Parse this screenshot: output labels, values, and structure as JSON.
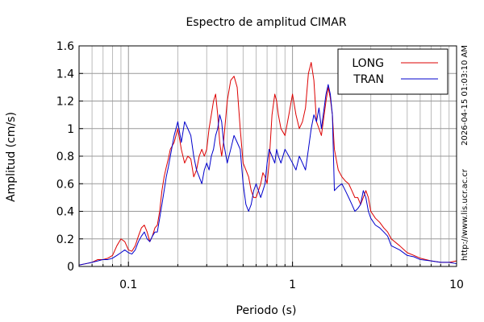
{
  "chart_data": {
    "type": "line",
    "title": "Espectro de amplitud CIMAR",
    "xlabel": "Periodo (s)",
    "ylabel": "Amplitud (cm/s)",
    "xscale": "log",
    "xlim": [
      0.05,
      10
    ],
    "ylim": [
      0,
      1.6
    ],
    "x_tick_labels": [
      "0.1",
      "1",
      "10"
    ],
    "y_tick_labels": [
      "0",
      "0.2",
      "0.4",
      "0.6",
      "0.8",
      "1",
      "1.2",
      "1.4",
      "1.6"
    ],
    "grid": true,
    "legend_position": "top-right",
    "side_text_timestamp": "2026-04-15 01:03:10 AM",
    "side_text_url": "http://www.lis.ucr.ac.cr",
    "series": [
      {
        "name": "LONG",
        "color": "#dd0000",
        "points": [
          [
            0.05,
            0.01
          ],
          [
            0.055,
            0.02
          ],
          [
            0.06,
            0.03
          ],
          [
            0.065,
            0.05
          ],
          [
            0.07,
            0.05
          ],
          [
            0.075,
            0.06
          ],
          [
            0.08,
            0.08
          ],
          [
            0.085,
            0.15
          ],
          [
            0.09,
            0.2
          ],
          [
            0.095,
            0.18
          ],
          [
            0.1,
            0.12
          ],
          [
            0.105,
            0.11
          ],
          [
            0.11,
            0.15
          ],
          [
            0.115,
            0.22
          ],
          [
            0.12,
            0.28
          ],
          [
            0.125,
            0.3
          ],
          [
            0.13,
            0.25
          ],
          [
            0.135,
            0.18
          ],
          [
            0.14,
            0.22
          ],
          [
            0.145,
            0.28
          ],
          [
            0.15,
            0.3
          ],
          [
            0.155,
            0.4
          ],
          [
            0.16,
            0.55
          ],
          [
            0.165,
            0.65
          ],
          [
            0.17,
            0.72
          ],
          [
            0.175,
            0.78
          ],
          [
            0.18,
            0.85
          ],
          [
            0.19,
            0.9
          ],
          [
            0.2,
            1.0
          ],
          [
            0.21,
            0.85
          ],
          [
            0.22,
            0.75
          ],
          [
            0.23,
            0.8
          ],
          [
            0.24,
            0.78
          ],
          [
            0.25,
            0.65
          ],
          [
            0.26,
            0.7
          ],
          [
            0.27,
            0.8
          ],
          [
            0.28,
            0.85
          ],
          [
            0.29,
            0.8
          ],
          [
            0.3,
            0.85
          ],
          [
            0.31,
            1.0
          ],
          [
            0.32,
            1.1
          ],
          [
            0.33,
            1.2
          ],
          [
            0.34,
            1.25
          ],
          [
            0.35,
            1.1
          ],
          [
            0.36,
            0.9
          ],
          [
            0.37,
            0.8
          ],
          [
            0.38,
            0.9
          ],
          [
            0.4,
            1.2
          ],
          [
            0.42,
            1.35
          ],
          [
            0.44,
            1.38
          ],
          [
            0.46,
            1.3
          ],
          [
            0.48,
            1.0
          ],
          [
            0.5,
            0.75
          ],
          [
            0.52,
            0.7
          ],
          [
            0.54,
            0.65
          ],
          [
            0.56,
            0.55
          ],
          [
            0.58,
            0.5
          ],
          [
            0.6,
            0.5
          ],
          [
            0.62,
            0.55
          ],
          [
            0.64,
            0.6
          ],
          [
            0.66,
            0.68
          ],
          [
            0.68,
            0.65
          ],
          [
            0.7,
            0.6
          ],
          [
            0.72,
            0.75
          ],
          [
            0.75,
            1.1
          ],
          [
            0.78,
            1.25
          ],
          [
            0.8,
            1.2
          ],
          [
            0.82,
            1.1
          ],
          [
            0.85,
            1.0
          ],
          [
            0.9,
            0.95
          ],
          [
            0.95,
            1.1
          ],
          [
            1.0,
            1.25
          ],
          [
            1.05,
            1.1
          ],
          [
            1.1,
            1.0
          ],
          [
            1.15,
            1.05
          ],
          [
            1.2,
            1.15
          ],
          [
            1.25,
            1.4
          ],
          [
            1.3,
            1.48
          ],
          [
            1.35,
            1.35
          ],
          [
            1.4,
            1.05
          ],
          [
            1.45,
            1.0
          ],
          [
            1.5,
            0.95
          ],
          [
            1.6,
            1.2
          ],
          [
            1.65,
            1.3
          ],
          [
            1.7,
            1.22
          ],
          [
            1.75,
            1.1
          ],
          [
            1.8,
            0.85
          ],
          [
            1.9,
            0.7
          ],
          [
            2.0,
            0.65
          ],
          [
            2.1,
            0.62
          ],
          [
            2.2,
            0.6
          ],
          [
            2.3,
            0.55
          ],
          [
            2.4,
            0.5
          ],
          [
            2.5,
            0.5
          ],
          [
            2.6,
            0.45
          ],
          [
            2.7,
            0.5
          ],
          [
            2.8,
            0.55
          ],
          [
            2.9,
            0.5
          ],
          [
            3.0,
            0.4
          ],
          [
            3.2,
            0.35
          ],
          [
            3.4,
            0.32
          ],
          [
            3.6,
            0.28
          ],
          [
            3.8,
            0.25
          ],
          [
            4.0,
            0.2
          ],
          [
            4.5,
            0.15
          ],
          [
            5.0,
            0.1
          ],
          [
            5.5,
            0.08
          ],
          [
            6.0,
            0.06
          ],
          [
            7.0,
            0.04
          ],
          [
            8.0,
            0.03
          ],
          [
            9.0,
            0.03
          ],
          [
            10.0,
            0.04
          ]
        ]
      },
      {
        "name": "TRAN",
        "color": "#0000cc",
        "points": [
          [
            0.05,
            0.01
          ],
          [
            0.055,
            0.02
          ],
          [
            0.06,
            0.03
          ],
          [
            0.065,
            0.04
          ],
          [
            0.07,
            0.05
          ],
          [
            0.075,
            0.05
          ],
          [
            0.08,
            0.06
          ],
          [
            0.085,
            0.08
          ],
          [
            0.09,
            0.1
          ],
          [
            0.095,
            0.12
          ],
          [
            0.1,
            0.1
          ],
          [
            0.105,
            0.09
          ],
          [
            0.11,
            0.12
          ],
          [
            0.115,
            0.18
          ],
          [
            0.12,
            0.22
          ],
          [
            0.125,
            0.25
          ],
          [
            0.13,
            0.2
          ],
          [
            0.135,
            0.18
          ],
          [
            0.14,
            0.22
          ],
          [
            0.145,
            0.25
          ],
          [
            0.15,
            0.25
          ],
          [
            0.155,
            0.35
          ],
          [
            0.16,
            0.45
          ],
          [
            0.165,
            0.55
          ],
          [
            0.17,
            0.65
          ],
          [
            0.175,
            0.72
          ],
          [
            0.18,
            0.8
          ],
          [
            0.19,
            0.95
          ],
          [
            0.2,
            1.05
          ],
          [
            0.21,
            0.9
          ],
          [
            0.22,
            1.05
          ],
          [
            0.23,
            1.0
          ],
          [
            0.24,
            0.95
          ],
          [
            0.25,
            0.8
          ],
          [
            0.26,
            0.7
          ],
          [
            0.27,
            0.65
          ],
          [
            0.28,
            0.6
          ],
          [
            0.29,
            0.7
          ],
          [
            0.3,
            0.75
          ],
          [
            0.31,
            0.7
          ],
          [
            0.32,
            0.8
          ],
          [
            0.33,
            0.85
          ],
          [
            0.34,
            0.95
          ],
          [
            0.35,
            1.0
          ],
          [
            0.36,
            1.1
          ],
          [
            0.37,
            1.05
          ],
          [
            0.38,
            0.9
          ],
          [
            0.4,
            0.75
          ],
          [
            0.42,
            0.85
          ],
          [
            0.44,
            0.95
          ],
          [
            0.46,
            0.9
          ],
          [
            0.48,
            0.85
          ],
          [
            0.5,
            0.6
          ],
          [
            0.52,
            0.45
          ],
          [
            0.54,
            0.4
          ],
          [
            0.56,
            0.45
          ],
          [
            0.58,
            0.55
          ],
          [
            0.6,
            0.6
          ],
          [
            0.62,
            0.55
          ],
          [
            0.64,
            0.5
          ],
          [
            0.66,
            0.55
          ],
          [
            0.68,
            0.6
          ],
          [
            0.7,
            0.75
          ],
          [
            0.72,
            0.85
          ],
          [
            0.75,
            0.8
          ],
          [
            0.78,
            0.75
          ],
          [
            0.8,
            0.85
          ],
          [
            0.82,
            0.8
          ],
          [
            0.85,
            0.75
          ],
          [
            0.9,
            0.85
          ],
          [
            0.95,
            0.8
          ],
          [
            1.0,
            0.75
          ],
          [
            1.05,
            0.7
          ],
          [
            1.1,
            0.8
          ],
          [
            1.15,
            0.75
          ],
          [
            1.2,
            0.7
          ],
          [
            1.25,
            0.85
          ],
          [
            1.3,
            1.0
          ],
          [
            1.35,
            1.1
          ],
          [
            1.4,
            1.05
          ],
          [
            1.45,
            1.15
          ],
          [
            1.5,
            1.0
          ],
          [
            1.6,
            1.25
          ],
          [
            1.65,
            1.32
          ],
          [
            1.7,
            1.25
          ],
          [
            1.75,
            1.1
          ],
          [
            1.8,
            0.55
          ],
          [
            1.9,
            0.58
          ],
          [
            2.0,
            0.6
          ],
          [
            2.1,
            0.55
          ],
          [
            2.2,
            0.5
          ],
          [
            2.3,
            0.45
          ],
          [
            2.4,
            0.4
          ],
          [
            2.5,
            0.42
          ],
          [
            2.6,
            0.45
          ],
          [
            2.7,
            0.55
          ],
          [
            2.8,
            0.5
          ],
          [
            2.9,
            0.4
          ],
          [
            3.0,
            0.35
          ],
          [
            3.2,
            0.3
          ],
          [
            3.4,
            0.28
          ],
          [
            3.6,
            0.25
          ],
          [
            3.8,
            0.22
          ],
          [
            4.0,
            0.15
          ],
          [
            4.5,
            0.12
          ],
          [
            5.0,
            0.08
          ],
          [
            5.5,
            0.07
          ],
          [
            6.0,
            0.05
          ],
          [
            7.0,
            0.04
          ],
          [
            8.0,
            0.03
          ],
          [
            9.0,
            0.03
          ],
          [
            10.0,
            0.02
          ]
        ]
      }
    ]
  }
}
